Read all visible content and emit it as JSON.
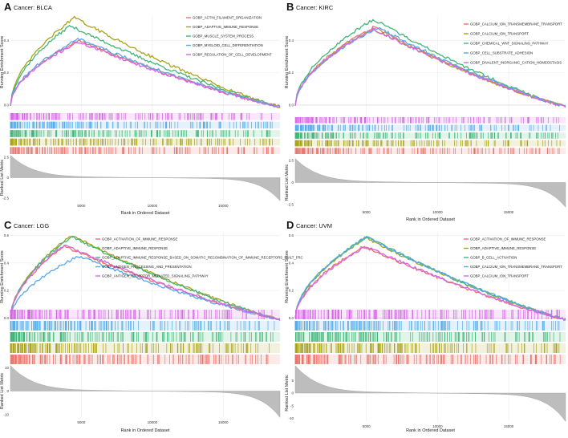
{
  "figure": {
    "background": "#ffffff"
  },
  "chart_data": [
    {
      "type": "line",
      "panel_letter": "A",
      "title": "Cancer: BLCA",
      "xlabel": "Rank in Ordered Dataset",
      "ylabel_top": "Running Enrichment Score",
      "ylabel_bottom": "Ranked List Metric",
      "xlim": [
        0,
        19000
      ],
      "ylim": [
        -0.02,
        0.55
      ],
      "x_ticks": [
        5000,
        10000,
        15000
      ],
      "y_ticks": [
        0.0,
        0.2,
        0.4
      ],
      "metric_ticks": [
        2.5,
        0,
        -2.5
      ],
      "legend_position": "top-right",
      "series": [
        {
          "name": "GOBP_ACTIN_FILAMENT_ORGANIZATION",
          "color": "#E8736B",
          "peak_x": 4800,
          "peak": 0.4
        },
        {
          "name": "GOBP_ADAPTIVE_IMMUNE_RESPONSE",
          "color": "#A8A218",
          "peak_x": 4500,
          "peak": 0.54
        },
        {
          "name": "GOBP_MUSCLE_SYSTEM_PROCESS",
          "color": "#41B57A",
          "peak_x": 4200,
          "peak": 0.49
        },
        {
          "name": "GOBP_MYELOID_CELL_DIFFERENTIATION",
          "color": "#55A9E6",
          "peak_x": 4800,
          "peak": 0.41
        },
        {
          "name": "GOBP_REGULATION_OF_CELL_DEVELOPMENT",
          "color": "#D566E6",
          "peak_x": 4800,
          "peak": 0.39
        }
      ]
    },
    {
      "type": "line",
      "panel_letter": "B",
      "title": "Cancer: KIRC",
      "xlabel": "Rank in Ordered Dataset",
      "ylabel_top": "Running Enrichment Score",
      "ylabel_bottom": "Ranked List Metric",
      "xlim": [
        0,
        19000
      ],
      "ylim": [
        -0.02,
        0.55
      ],
      "x_ticks": [
        5000,
        10000,
        15000
      ],
      "y_ticks": [
        0.0,
        0.2,
        0.4
      ],
      "metric_ticks": [
        2.5,
        0.0,
        -2.5
      ],
      "legend_position": "top-right",
      "series": [
        {
          "name": "GOBP_CALCIUM_ION_TRANSMEMBRANE_TRANSPORT",
          "color": "#E8736B",
          "peak_x": 5500,
          "peak": 0.48
        },
        {
          "name": "GOBP_CALCIUM_ION_TRANSPORT",
          "color": "#A8A218",
          "peak_x": 5500,
          "peak": 0.47
        },
        {
          "name": "GOBP_CHEMICAL_WNT_SIGNALING_PATHWAY",
          "color": "#41B57A",
          "peak_x": 5500,
          "peak": 0.53
        },
        {
          "name": "GOBP_CELL_SUBSTRATE_ADHESION",
          "color": "#55A9E6",
          "peak_x": 5800,
          "peak": 0.48
        },
        {
          "name": "GOBP_DIVALENT_INORGANIC_CATION_HOMEOSTASIS",
          "color": "#D566E6",
          "peak_x": 5500,
          "peak": 0.47
        }
      ]
    },
    {
      "type": "line",
      "panel_letter": "C",
      "title": "Cancer: LGG",
      "xlabel": "Rank in Ordered Dataset",
      "ylabel_top": "Running Enrichment Score",
      "ylabel_bottom": "Ranked List Metric",
      "xlim": [
        0,
        19000
      ],
      "ylim": [
        -0.02,
        0.62
      ],
      "x_ticks": [
        5000,
        10000,
        15000
      ],
      "y_ticks": [
        0.0,
        0.2,
        0.4,
        0.6
      ],
      "metric_ticks": [
        10,
        0,
        -10
      ],
      "legend_position": "top-right",
      "series": [
        {
          "name": "GOBP_ACTIVATION_OF_IMMUNE_RESPONSE",
          "color": "#E8736B",
          "peak_x": 3800,
          "peak": 0.52
        },
        {
          "name": "GOBP_ADAPTIVE_IMMUNE_RESPONSE",
          "color": "#A8A218",
          "peak_x": 4300,
          "peak": 0.6
        },
        {
          "name": "GOBP_ADAPTIVE_IMMUNE_RESPONSE_BASED_ON_SOMATIC_RECOMBINATION_OF_IMMUNE_RECEPTORS_BUILT_FRC",
          "color": "#41B57A",
          "peak_x": 4300,
          "peak": 0.59
        },
        {
          "name": "GOBP_ANTIGEN_PROCESSING_AND_PRESENTATION",
          "color": "#55A9E6",
          "peak_x": 4800,
          "peak": 0.45
        },
        {
          "name": "GOBP_ANTIGEN_RECEPTOR_MEDIATED_SIGNALING_PATHWAY",
          "color": "#D566E6",
          "peak_x": 3800,
          "peak": 0.53
        }
      ]
    },
    {
      "type": "line",
      "panel_letter": "D",
      "title": "Cancer: UVM",
      "xlabel": "Rank in Ordered Dataset",
      "ylabel_top": "Running Enrichment Score",
      "ylabel_bottom": "Ranked List Metric",
      "xlim": [
        0,
        19000
      ],
      "ylim": [
        -0.02,
        0.62
      ],
      "x_ticks": [
        5000,
        10000,
        15000
      ],
      "y_ticks": [
        0.0,
        0.2,
        0.4,
        0.6
      ],
      "metric_ticks": [
        5,
        0,
        -5,
        -10
      ],
      "legend_position": "top-right",
      "series": [
        {
          "name": "GOBP_ACTIVATION_OF_IMMUNE_RESPONSE",
          "color": "#E8736B",
          "peak_x": 4800,
          "peak": 0.52
        },
        {
          "name": "GOBP_ADAPTIVE_IMMUNE_RESPONSE",
          "color": "#A8A218",
          "peak_x": 5000,
          "peak": 0.58
        },
        {
          "name": "GOBP_B_CELL_ACTIVATION",
          "color": "#41B57A",
          "peak_x": 5000,
          "peak": 0.59
        },
        {
          "name": "GOBP_CALCIUM_ION_TRANSMEMBRANE_TRANSPORT",
          "color": "#55A9E6",
          "peak_x": 5000,
          "peak": 0.59
        },
        {
          "name": "GOBP_CALCIUM_ION_TRANSPORT",
          "color": "#D566E6",
          "peak_x": 5000,
          "peak": 0.52
        }
      ]
    }
  ]
}
